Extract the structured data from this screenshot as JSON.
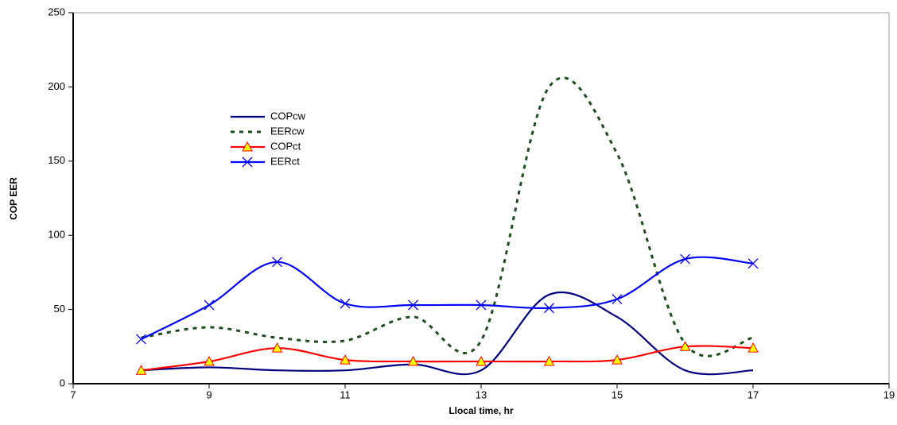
{
  "chart_data": {
    "type": "line",
    "x_label": "Llocal time, hr",
    "y_label": "COP EER",
    "x": [
      8,
      9,
      10,
      11,
      12,
      13,
      14,
      15,
      16,
      17
    ],
    "series": [
      {
        "name": "COPcw",
        "color": "#000080",
        "dash": false,
        "marker": "none",
        "values": [
          9,
          11,
          9,
          9,
          13,
          9,
          60,
          45,
          9,
          9
        ]
      },
      {
        "name": "EERcw",
        "color": "#1e4d1e",
        "dash": true,
        "marker": "none",
        "values": [
          31,
          38,
          31,
          29,
          45,
          29,
          200,
          155,
          27,
          31
        ]
      },
      {
        "name": "COPct",
        "color": "#ff0000",
        "dash": false,
        "marker": "triangle",
        "values": [
          9,
          15,
          24,
          16,
          15,
          15,
          15,
          16,
          25,
          24
        ]
      },
      {
        "name": "EERct",
        "color": "#0000ff",
        "dash": false,
        "marker": "x",
        "values": [
          30,
          53,
          82,
          54,
          53,
          53,
          51,
          57,
          84,
          81
        ]
      }
    ],
    "xlim": [
      7,
      19
    ],
    "xticks": [
      7,
      9,
      11,
      13,
      15,
      17,
      19
    ],
    "ylim": [
      0,
      250
    ],
    "yticks": [
      0,
      50,
      100,
      150,
      200,
      250
    ],
    "smooth": true
  }
}
